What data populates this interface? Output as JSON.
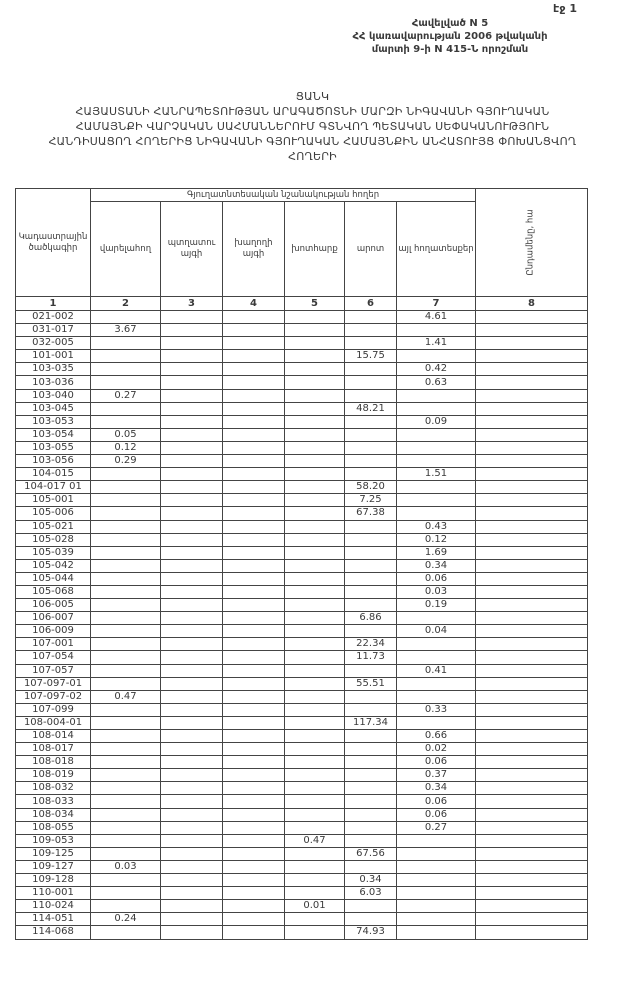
{
  "page_number": "էջ 1",
  "annex": {
    "line1": "Հավելված N 5",
    "line2": "ՀՀ կառավարության 2006 թվականի",
    "line3": "մարտի 9-ի N 415-Ն որոշման"
  },
  "title": {
    "heading": "ՑԱՆԿ",
    "line1": "ՀԱՅԱՍՏԱՆԻ ՀԱՆՐԱՊԵՏՈՒԹՅԱՆ ԱՐԱԳԱԾՈՏՆԻ ՄԱՐԶԻ ՆԻԳԱՎԱՆԻ ԳՅՈՒՂԱԿԱՆ",
    "line2": "ՀԱՄԱՅՆՔԻ ՎԱՐՉԱԿԱՆ ՍԱՀՄԱՆՆԵՐՈՒՄ ԳՏՆՎՈՂ ՊԵՏԱԿԱՆ ՍԵՓԱԿԱՆՈՒԹՅՈՒՆ",
    "line3": "ՀԱՆԴԻՍԱՑՈՂ ՀՈՂԵՐԻՑ ՆԻԳԱՎԱՆԻ ԳՅՈՒՂԱԿԱՆ ՀԱՄԱՅՆՔԻՆ ԱՆՀԱՏՈՒՅՑ ՓՈԽԱՆՑՎՈՂ",
    "line4": "ՀՈՂԵՐԻ"
  },
  "table": {
    "group_header": "Գյուղատնտեսական նշանակության հողեր",
    "columns": [
      "Կադաստրային ծածկագիր",
      "վարելահող",
      "պտղատու այգի",
      "խաղողի այգի",
      "խոտհարք",
      "արոտ",
      "այլ հողատեսքեր",
      "Ընդամենը, հա"
    ],
    "column_numbers": [
      "1",
      "2",
      "3",
      "4",
      "5",
      "6",
      "7",
      "8"
    ],
    "rows": [
      [
        "021-002",
        "",
        "",
        "",
        "",
        "",
        "4.61",
        ""
      ],
      [
        "031-017",
        "3.67",
        "",
        "",
        "",
        "",
        "",
        ""
      ],
      [
        "032-005",
        "",
        "",
        "",
        "",
        "",
        "1.41",
        ""
      ],
      [
        "101-001",
        "",
        "",
        "",
        "",
        "15.75",
        "",
        ""
      ],
      [
        "103-035",
        "",
        "",
        "",
        "",
        "",
        "0.42",
        ""
      ],
      [
        "103-036",
        "",
        "",
        "",
        "",
        "",
        "0.63",
        ""
      ],
      [
        "103-040",
        "0.27",
        "",
        "",
        "",
        "",
        "",
        ""
      ],
      [
        "103-045",
        "",
        "",
        "",
        "",
        "48.21",
        "",
        ""
      ],
      [
        "103-053",
        "",
        "",
        "",
        "",
        "",
        "0.09",
        ""
      ],
      [
        "103-054",
        "0.05",
        "",
        "",
        "",
        "",
        "",
        ""
      ],
      [
        "103-055",
        "0.12",
        "",
        "",
        "",
        "",
        "",
        ""
      ],
      [
        "103-056",
        "0.29",
        "",
        "",
        "",
        "",
        "",
        ""
      ],
      [
        "104-015",
        "",
        "",
        "",
        "",
        "",
        "1.51",
        ""
      ],
      [
        "104-017 01",
        "",
        "",
        "",
        "",
        "58.20",
        "",
        ""
      ],
      [
        "105-001",
        "",
        "",
        "",
        "",
        "7.25",
        "",
        ""
      ],
      [
        "105-006",
        "",
        "",
        "",
        "",
        "67.38",
        "",
        ""
      ],
      [
        "105-021",
        "",
        "",
        "",
        "",
        "",
        "0.43",
        ""
      ],
      [
        "105-028",
        "",
        "",
        "",
        "",
        "",
        "0.12",
        ""
      ],
      [
        "105-039",
        "",
        "",
        "",
        "",
        "",
        "1.69",
        ""
      ],
      [
        "105-042",
        "",
        "",
        "",
        "",
        "",
        "0.34",
        ""
      ],
      [
        "105-044",
        "",
        "",
        "",
        "",
        "",
        "0.06",
        ""
      ],
      [
        "105-068",
        "",
        "",
        "",
        "",
        "",
        "0.03",
        ""
      ],
      [
        "106-005",
        "",
        "",
        "",
        "",
        "",
        "0.19",
        ""
      ],
      [
        "106-007",
        "",
        "",
        "",
        "",
        "6.86",
        "",
        ""
      ],
      [
        "106-009",
        "",
        "",
        "",
        "",
        "",
        "0.04",
        ""
      ],
      [
        "107-001",
        "",
        "",
        "",
        "",
        "22.34",
        "",
        ""
      ],
      [
        "107-054",
        "",
        "",
        "",
        "",
        "11.73",
        "",
        ""
      ],
      [
        "107-057",
        "",
        "",
        "",
        "",
        "",
        "0.41",
        ""
      ],
      [
        "107-097-01",
        "",
        "",
        "",
        "",
        "55.51",
        "",
        ""
      ],
      [
        "107-097-02",
        "0.47",
        "",
        "",
        "",
        "",
        "",
        ""
      ],
      [
        "107-099",
        "",
        "",
        "",
        "",
        "",
        "0.33",
        ""
      ],
      [
        "108-004-01",
        "",
        "",
        "",
        "",
        "117.34",
        "",
        ""
      ],
      [
        "108-014",
        "",
        "",
        "",
        "",
        "",
        "0.66",
        ""
      ],
      [
        "108-017",
        "",
        "",
        "",
        "",
        "",
        "0.02",
        ""
      ],
      [
        "108-018",
        "",
        "",
        "",
        "",
        "",
        "0.06",
        ""
      ],
      [
        "108-019",
        "",
        "",
        "",
        "",
        "",
        "0.37",
        ""
      ],
      [
        "108-032",
        "",
        "",
        "",
        "",
        "",
        "0.34",
        ""
      ],
      [
        "108-033",
        "",
        "",
        "",
        "",
        "",
        "0.06",
        ""
      ],
      [
        "108-034",
        "",
        "",
        "",
        "",
        "",
        "0.06",
        ""
      ],
      [
        "108-055",
        "",
        "",
        "",
        "",
        "",
        "0.27",
        ""
      ],
      [
        "109-053",
        "",
        "",
        "",
        "0.47",
        "",
        "",
        ""
      ],
      [
        "109-125",
        "",
        "",
        "",
        "",
        "67.56",
        "",
        ""
      ],
      [
        "109-127",
        "0.03",
        "",
        "",
        "",
        "",
        "",
        ""
      ],
      [
        "109-128",
        "",
        "",
        "",
        "",
        "0.34",
        "",
        ""
      ],
      [
        "110-001",
        "",
        "",
        "",
        "",
        "6.03",
        "",
        ""
      ],
      [
        "110-024",
        "",
        "",
        "",
        "0.01",
        "",
        "",
        ""
      ],
      [
        "114-051",
        "0.24",
        "",
        "",
        "",
        "",
        "",
        ""
      ],
      [
        "114-068",
        "",
        "",
        "",
        "",
        "74.93",
        "",
        ""
      ]
    ]
  }
}
